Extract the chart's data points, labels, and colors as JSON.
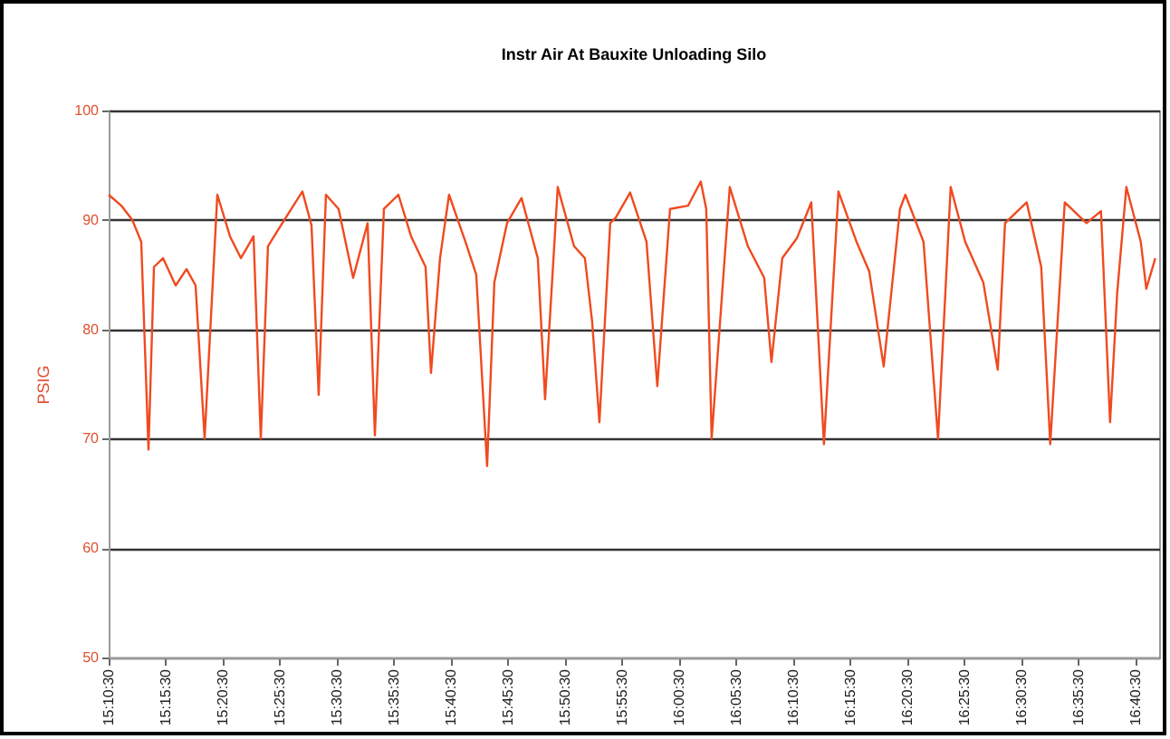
{
  "chart_data": {
    "type": "line",
    "title": "Instr Air At Bauxite Unloading Silo",
    "ylabel": "PSIG",
    "x": [
      15.175,
      15.1935,
      15.2094,
      15.2226,
      15.2332,
      15.2412,
      15.2544,
      15.2729,
      15.2888,
      15.302,
      15.3152,
      15.3338,
      15.3523,
      15.3682,
      15.3867,
      15.3973,
      15.4078,
      15.4317,
      15.4581,
      15.4714,
      15.4819,
      15.4925,
      15.511,
      15.5322,
      15.5534,
      15.564,
      15.5772,
      15.5984,
      15.6169,
      15.6381,
      15.646,
      15.6592,
      15.6724,
      15.6963,
      15.7121,
      15.728,
      15.7386,
      15.7571,
      15.7783,
      15.8021,
      15.8127,
      15.8312,
      15.855,
      15.8709,
      15.8815,
      15.8921,
      15.9079,
      15.9159,
      15.937,
      15.9609,
      15.9767,
      15.9953,
      16.0217,
      16.0402,
      16.0482,
      16.0561,
      16.0826,
      16.109,
      16.1329,
      16.1435,
      16.1593,
      16.1805,
      16.2017,
      16.2202,
      16.2414,
      16.2678,
      16.2863,
      16.3075,
      16.3313,
      16.3392,
      16.3657,
      16.3869,
      16.4054,
      16.4266,
      16.453,
      16.4742,
      16.4848,
      16.5165,
      16.5377,
      16.5509,
      16.5721,
      16.6038,
      16.625,
      16.6383,
      16.6488,
      16.6621,
      16.6832,
      16.6912,
      16.7044
    ],
    "series": [
      {
        "color": "#f04a20",
        "values": [
          92.3,
          91.3,
          90,
          88,
          69,
          85.7,
          86.5,
          84,
          85.5,
          84,
          70,
          92.3,
          88.5,
          86.5,
          88.5,
          70,
          87.6,
          90,
          92.6,
          89.5,
          74,
          92.3,
          91,
          84.7,
          89.7,
          70.3,
          91,
          92.3,
          88.5,
          85.7,
          76,
          86.5,
          92.3,
          88,
          85,
          67.5,
          84.3,
          89.7,
          92,
          86.5,
          73.6,
          93,
          87.6,
          86.5,
          80.7,
          71.5,
          89.7,
          90.2,
          92.5,
          88,
          74.8,
          91,
          91.3,
          93.5,
          91,
          70,
          93,
          87.6,
          84.7,
          77,
          86.5,
          88.3,
          91.6,
          69.5,
          92.6,
          88,
          85.3,
          76.6,
          91,
          92.3,
          88,
          70,
          93,
          88,
          84.3,
          76.3,
          89.7,
          91.6,
          85.7,
          69.5,
          91.6,
          89.7,
          90.8,
          71.5,
          83.4,
          93,
          88,
          83.7,
          86.5
        ]
      }
    ],
    "xlim": [
      15.175,
      16.71
    ],
    "xticks": [
      {
        "value": 15.175,
        "label": "15:10:30"
      },
      {
        "value": 15.2583,
        "label": "15:15:30"
      },
      {
        "value": 15.3417,
        "label": "15:20:30"
      },
      {
        "value": 15.425,
        "label": "15:25:30"
      },
      {
        "value": 15.5083,
        "label": "15:30:30"
      },
      {
        "value": 15.5917,
        "label": "15:35:30"
      },
      {
        "value": 15.675,
        "label": "15:40:30"
      },
      {
        "value": 15.7583,
        "label": "15:45:30"
      },
      {
        "value": 15.8417,
        "label": "15:50:30"
      },
      {
        "value": 15.925,
        "label": "15:55:30"
      },
      {
        "value": 16.0083,
        "label": "16:00:30"
      },
      {
        "value": 16.0917,
        "label": "16:05:30"
      },
      {
        "value": 16.175,
        "label": "16:10:30"
      },
      {
        "value": 16.2583,
        "label": "16:15:30"
      },
      {
        "value": 16.3417,
        "label": "16:20:30"
      },
      {
        "value": 16.425,
        "label": "16:25:30"
      },
      {
        "value": 16.5083,
        "label": "16:30:30"
      },
      {
        "value": 16.5917,
        "label": "16:35:30"
      },
      {
        "value": 16.675,
        "label": "16:40:30"
      }
    ],
    "ylim": [
      50,
      100
    ],
    "yticks": [
      50,
      60,
      70,
      80,
      90,
      100
    ],
    "grid": "y"
  }
}
